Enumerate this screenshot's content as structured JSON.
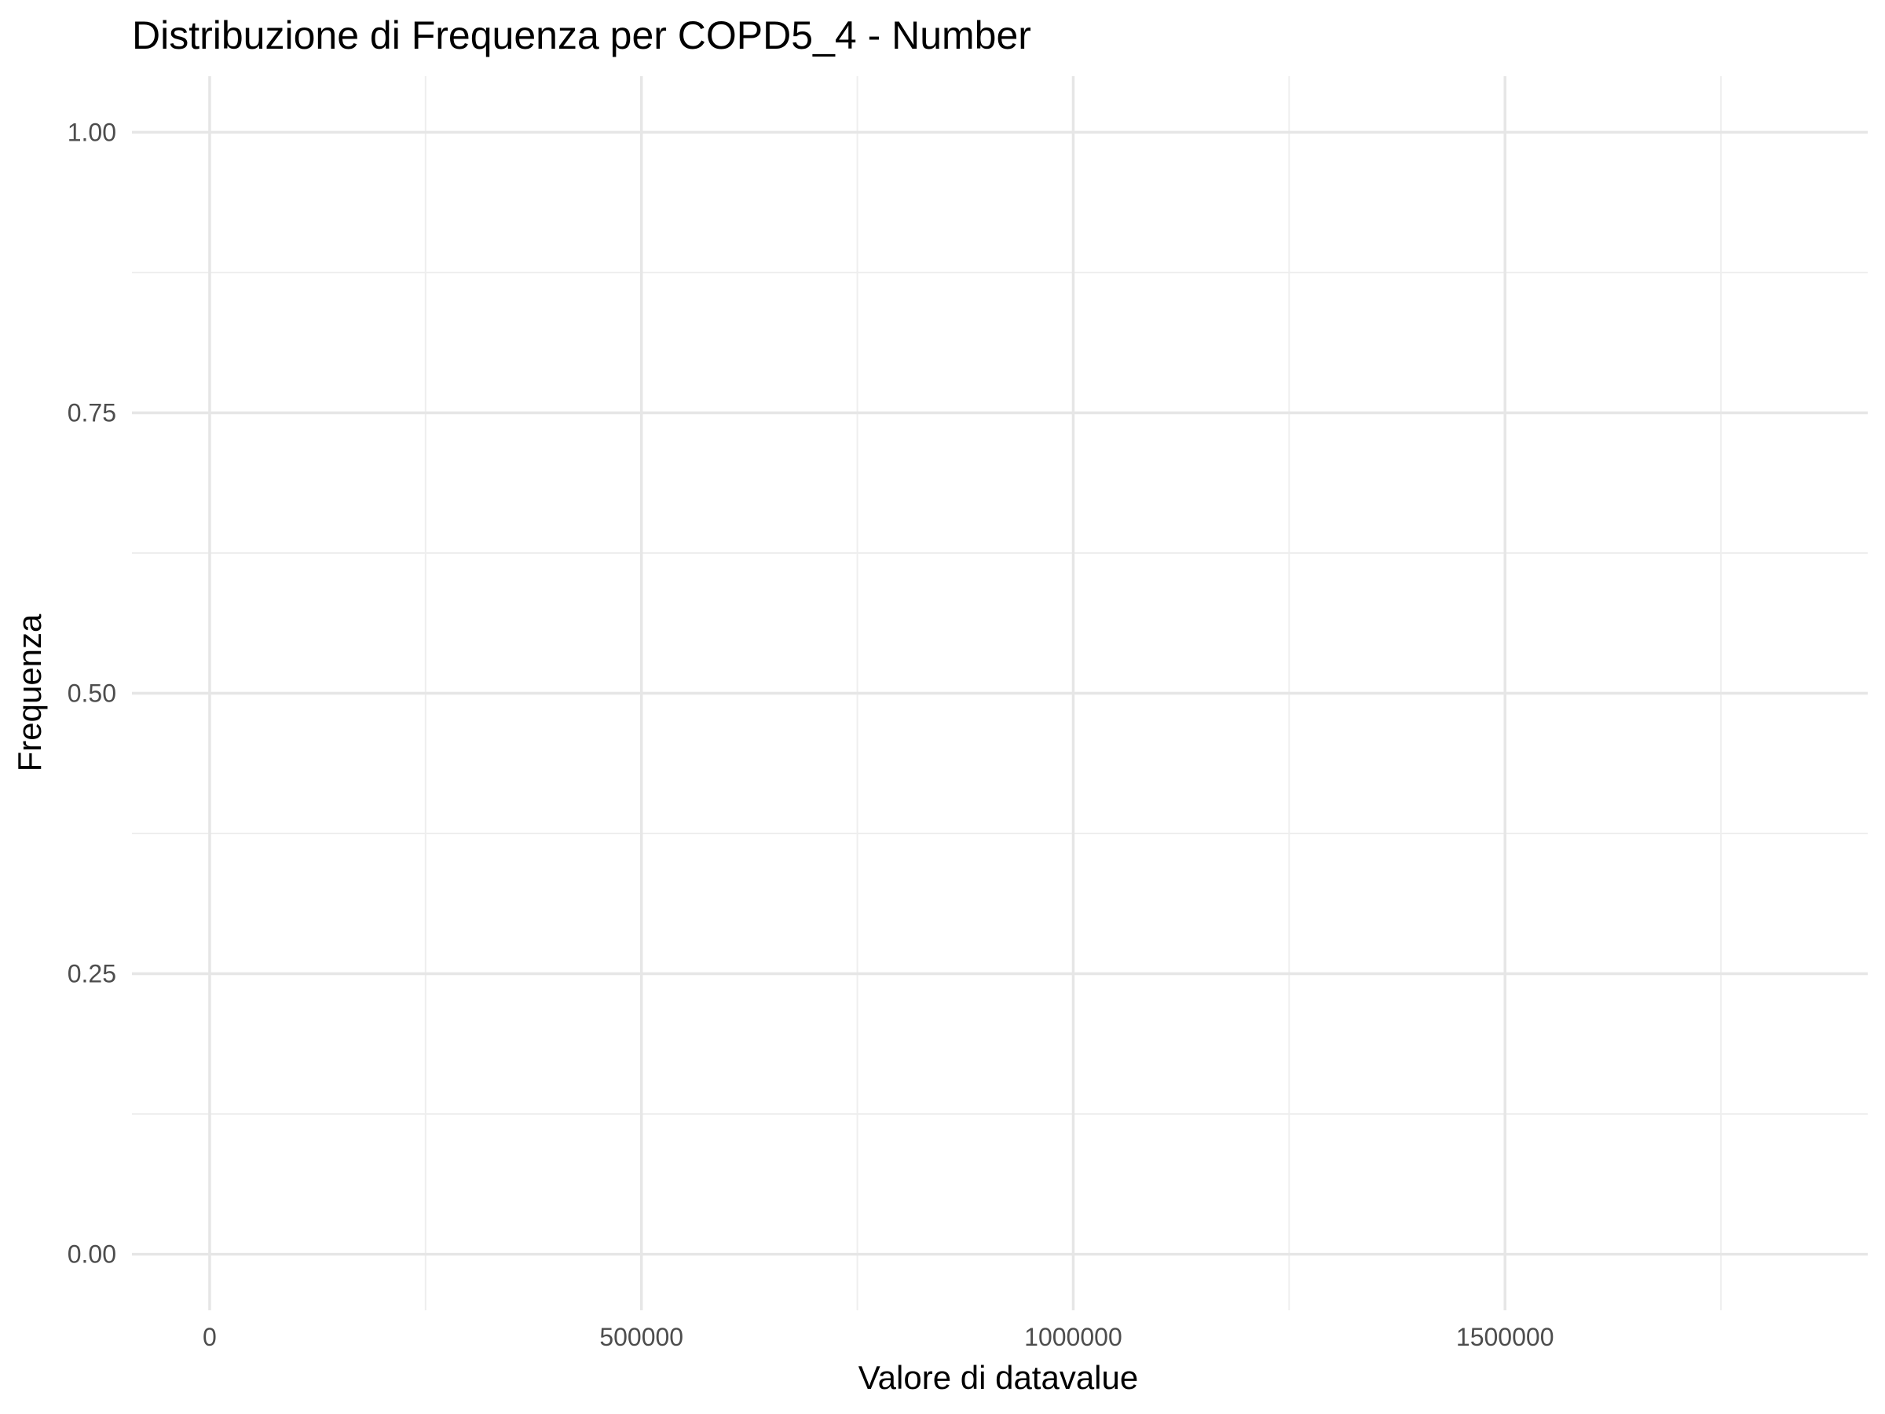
{
  "chart_data": {
    "type": "bar",
    "title": "Distribuzione di Frequenza per COPD5_4 - Number",
    "xlabel": "Valore di datavalue",
    "ylabel": "Frequenza",
    "xlim": [
      -90000,
      1920000
    ],
    "ylim": [
      -0.05,
      1.05
    ],
    "x_major_ticks": [
      0,
      500000,
      1000000,
      1500000
    ],
    "x_tick_labels": [
      "0",
      "500000",
      "1000000",
      "1500000"
    ],
    "x_minor_ticks": [
      250000,
      750000,
      1250000,
      1750000
    ],
    "y_major_ticks": [
      0,
      0.25,
      0.5,
      0.75,
      1.0
    ],
    "y_tick_labels": [
      "0.00",
      "0.25",
      "0.50",
      "0.75",
      "1.00"
    ],
    "y_minor_ticks": [
      0.125,
      0.375,
      0.625,
      0.875
    ],
    "grid": true,
    "background": "#ffffff",
    "grid_color": "#e6e6e6",
    "values": []
  }
}
